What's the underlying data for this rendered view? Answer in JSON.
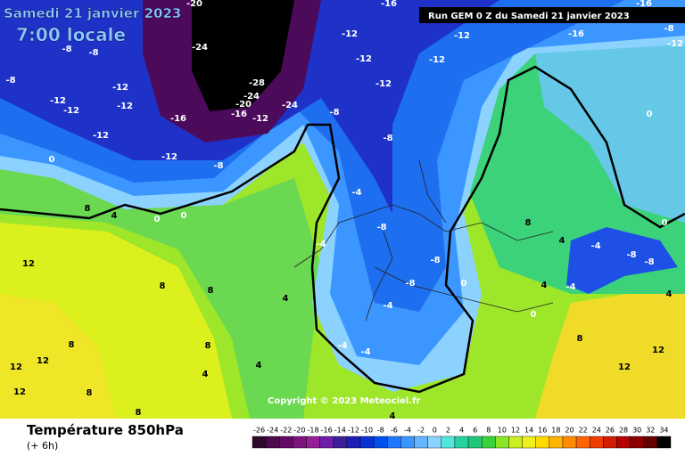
{
  "header": {
    "title": "Samedi 21 janvier 2023",
    "time": "7:00 locale",
    "run": "Run GEM 0 Z du Samedi 21 janvier 2023"
  },
  "copyright": "Copyright © 2023 Meteociel.fr",
  "footer": {
    "title": "Température 850hPa",
    "lead": "(+ 6h)"
  },
  "colorbar": {
    "ticks": [
      -26,
      -24,
      -22,
      -20,
      -18,
      -16,
      -14,
      -12,
      -10,
      -8,
      -6,
      -4,
      -2,
      0,
      2,
      4,
      6,
      8,
      10,
      12,
      14,
      16,
      18,
      20,
      22,
      24,
      26,
      28,
      30,
      32,
      34
    ],
    "colors": [
      "#2d0a2d",
      "#4b0a4b",
      "#640a64",
      "#7d147d",
      "#961e96",
      "#6e1eaa",
      "#3c1e9b",
      "#1e1eb4",
      "#0a32d2",
      "#0050f0",
      "#1e78ff",
      "#3c96ff",
      "#64b4ff",
      "#8cd2ff",
      "#50e6dc",
      "#28d2a0",
      "#1ec878",
      "#3cd23c",
      "#8ce628",
      "#c8f01e",
      "#f0f01e",
      "#ffdc00",
      "#ffb400",
      "#ff8c00",
      "#ff6400",
      "#f03c00",
      "#d21e00",
      "#b40000",
      "#8c0000",
      "#640000",
      "#000000"
    ]
  },
  "isotherm_labels": [
    -20,
    -16,
    -16,
    -8,
    -8,
    -8,
    -12,
    -12,
    -12,
    -12,
    -12,
    -12,
    -8,
    -24,
    -28,
    -24,
    -20,
    -16,
    -12,
    -24,
    -16,
    -12,
    -12,
    -12,
    -8,
    -8,
    -12,
    -12,
    -16,
    -12,
    -8,
    0,
    0,
    0,
    0,
    0,
    8,
    4,
    12,
    8,
    8,
    4,
    -4,
    -8,
    -8,
    -8,
    0,
    -4,
    -4,
    -4,
    -4,
    8,
    4,
    4,
    0,
    -4,
    -4,
    -8,
    -8,
    4,
    8,
    12,
    12,
    12,
    12,
    12,
    8,
    8,
    4,
    4,
    4,
    8,
    8
  ]
}
